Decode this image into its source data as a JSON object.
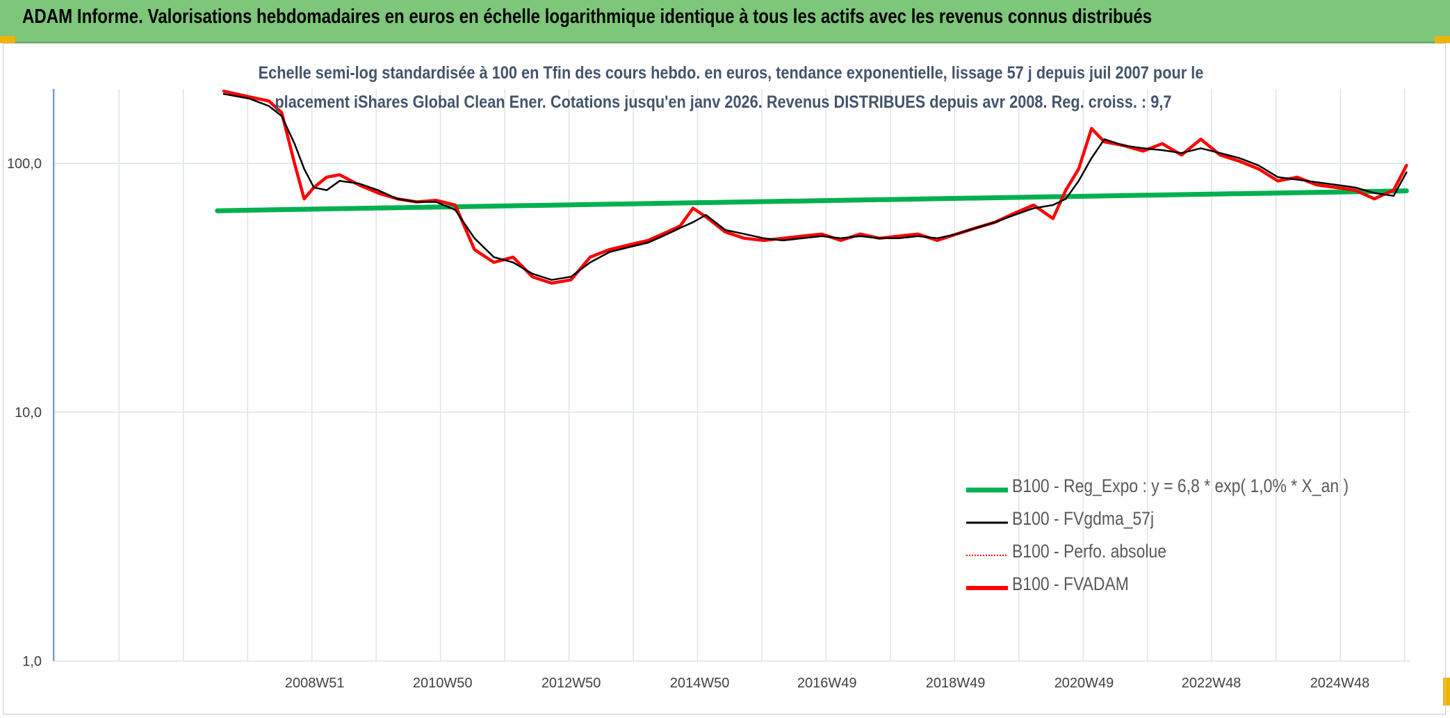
{
  "header": {
    "title": "ADAM Informe. Valorisations hebdomadaires en euros en échelle logarithmique identique à tous les actifs avec les revenus connus distribués"
  },
  "colors": {
    "banner": "#7dc67a",
    "accent_corners": "#f0b400",
    "reg_expo": "#00b050",
    "fvgdma": "#000000",
    "perfo": "#ff0000",
    "fvadam": "#ff0000",
    "grid": "#d9d9d9",
    "axis_line": "#4472c4"
  },
  "chart_data": {
    "type": "line",
    "subtitle_line1": "Echelle semi-log standardisée à 100 en Tfin des cours hebdo. en euros, tendance exponentielle, lissage 57 j depuis juil 2007 pour le",
    "subtitle_line2": "placement iShares Global Clean Ener. Cotations jusqu'en janv 2026. Revenus DISTRIBUES depuis avr 2008. Reg. croiss. : 9,7",
    "y_scale": "log",
    "ylim": [
      1,
      200
    ],
    "y_ticks": [
      "1,0",
      "10,0",
      "100,0"
    ],
    "x_range": [
      2004.95,
      2026.05
    ],
    "x_ticks": [
      "2008W51",
      "2010W50",
      "2012W50",
      "2014W50",
      "2016W49",
      "2018W49",
      "2020W49",
      "2022W48",
      "2024W48"
    ],
    "x_tick_years": [
      2008.97,
      2010.96,
      2012.96,
      2014.96,
      2016.94,
      2018.94,
      2020.94,
      2022.92,
      2024.92
    ],
    "grid": true,
    "legend_position": "bottom-right",
    "series": [
      {
        "name": "B100 - Reg_Expo : y = 6,8 * exp( 1,0% *  X_an )",
        "style": "thick-green",
        "x": [
          2007.5,
          2026.0
        ],
        "values": [
          64.5,
          77.5
        ]
      },
      {
        "name": "B100 - FVgdma_57j",
        "style": "thin-black",
        "x": [
          2007.6,
          2008.0,
          2008.3,
          2008.5,
          2008.7,
          2008.85,
          2009.0,
          2009.2,
          2009.4,
          2009.7,
          2010.0,
          2010.3,
          2010.6,
          2010.9,
          2011.2,
          2011.5,
          2011.8,
          2012.1,
          2012.4,
          2012.7,
          2013.0,
          2013.3,
          2013.6,
          2013.9,
          2014.2,
          2014.5,
          2014.7,
          2014.9,
          2015.1,
          2015.4,
          2015.7,
          2016.0,
          2016.3,
          2016.6,
          2016.9,
          2017.2,
          2017.5,
          2017.8,
          2018.1,
          2018.4,
          2018.7,
          2019.0,
          2019.3,
          2019.6,
          2019.9,
          2020.2,
          2020.5,
          2020.7,
          2020.9,
          2021.1,
          2021.3,
          2021.6,
          2021.9,
          2022.2,
          2022.5,
          2022.8,
          2023.1,
          2023.4,
          2023.7,
          2024.0,
          2024.3,
          2024.6,
          2024.9,
          2025.2,
          2025.5,
          2025.8,
          2026.0
        ],
        "values": [
          190,
          182,
          170,
          155,
          120,
          95,
          80,
          78,
          85,
          83,
          78,
          72,
          70,
          70,
          65,
          50,
          42,
          40,
          36,
          34,
          35,
          40,
          44,
          46,
          48,
          52,
          55,
          58,
          62,
          54,
          52,
          50,
          49,
          50,
          51,
          50,
          51,
          50,
          50,
          51,
          50,
          52,
          55,
          58,
          62,
          66,
          68,
          72,
          85,
          105,
          125,
          118,
          115,
          113,
          110,
          115,
          110,
          105,
          98,
          88,
          86,
          84,
          82,
          80,
          76,
          74,
          92
        ]
      },
      {
        "name": "B100 - Perfo. absolue",
        "style": "dotted-red",
        "x": [
          2007.6,
          2008.0,
          2008.3,
          2008.5,
          2008.7,
          2008.85,
          2009.0,
          2009.2,
          2009.4,
          2009.7,
          2010.0,
          2010.3,
          2010.6,
          2010.9,
          2011.2,
          2011.5,
          2011.8,
          2012.1,
          2012.4,
          2012.7,
          2013.0,
          2013.3,
          2013.6,
          2013.9,
          2014.2,
          2014.5,
          2014.7,
          2014.9,
          2015.1,
          2015.4,
          2015.7,
          2016.0,
          2016.3,
          2016.6,
          2016.9,
          2017.2,
          2017.5,
          2017.8,
          2018.1,
          2018.4,
          2018.7,
          2019.0,
          2019.3,
          2019.6,
          2019.9,
          2020.2,
          2020.5,
          2020.7,
          2020.9,
          2021.1,
          2021.3,
          2021.6,
          2021.9,
          2022.2,
          2022.5,
          2022.8,
          2023.1,
          2023.4,
          2023.7,
          2024.0,
          2024.3,
          2024.6,
          2024.9,
          2025.2,
          2025.5,
          2025.8,
          2026.0
        ],
        "values": [
          195,
          185,
          178,
          160,
          100,
          72,
          80,
          88,
          90,
          82,
          76,
          72,
          70,
          71,
          68,
          45,
          40,
          42,
          35,
          33,
          34,
          42,
          45,
          47,
          49,
          53,
          56,
          66,
          61,
          53,
          50,
          49,
          50,
          51,
          52,
          49,
          52,
          50,
          51,
          52,
          49,
          52,
          55,
          58,
          63,
          68,
          60,
          78,
          95,
          138,
          122,
          118,
          112,
          120,
          108,
          125,
          108,
          102,
          95,
          85,
          88,
          82,
          80,
          78,
          72,
          78,
          98
        ]
      },
      {
        "name": "B100 - FVADAM",
        "style": "thick-red",
        "x": [
          2007.6,
          2008.0,
          2008.3,
          2008.5,
          2008.7,
          2008.85,
          2009.0,
          2009.2,
          2009.4,
          2009.7,
          2010.0,
          2010.3,
          2010.6,
          2010.9,
          2011.2,
          2011.5,
          2011.8,
          2012.1,
          2012.4,
          2012.7,
          2013.0,
          2013.3,
          2013.6,
          2013.9,
          2014.2,
          2014.5,
          2014.7,
          2014.9,
          2015.1,
          2015.4,
          2015.7,
          2016.0,
          2016.3,
          2016.6,
          2016.9,
          2017.2,
          2017.5,
          2017.8,
          2018.1,
          2018.4,
          2018.7,
          2019.0,
          2019.3,
          2019.6,
          2019.9,
          2020.2,
          2020.5,
          2020.7,
          2020.9,
          2021.1,
          2021.3,
          2021.6,
          2021.9,
          2022.2,
          2022.5,
          2022.8,
          2023.1,
          2023.4,
          2023.7,
          2024.0,
          2024.3,
          2024.6,
          2024.9,
          2025.2,
          2025.5,
          2025.8,
          2026.0
        ],
        "values": [
          195,
          185,
          178,
          160,
          100,
          72,
          80,
          88,
          90,
          82,
          76,
          72,
          70,
          71,
          68,
          45,
          40,
          42,
          35,
          33,
          34,
          42,
          45,
          47,
          49,
          53,
          56,
          66,
          61,
          53,
          50,
          49,
          50,
          51,
          52,
          49,
          52,
          50,
          51,
          52,
          49,
          52,
          55,
          58,
          63,
          68,
          60,
          78,
          95,
          138,
          122,
          118,
          112,
          120,
          108,
          125,
          108,
          102,
          95,
          85,
          88,
          82,
          80,
          78,
          72,
          78,
          98
        ]
      }
    ]
  }
}
